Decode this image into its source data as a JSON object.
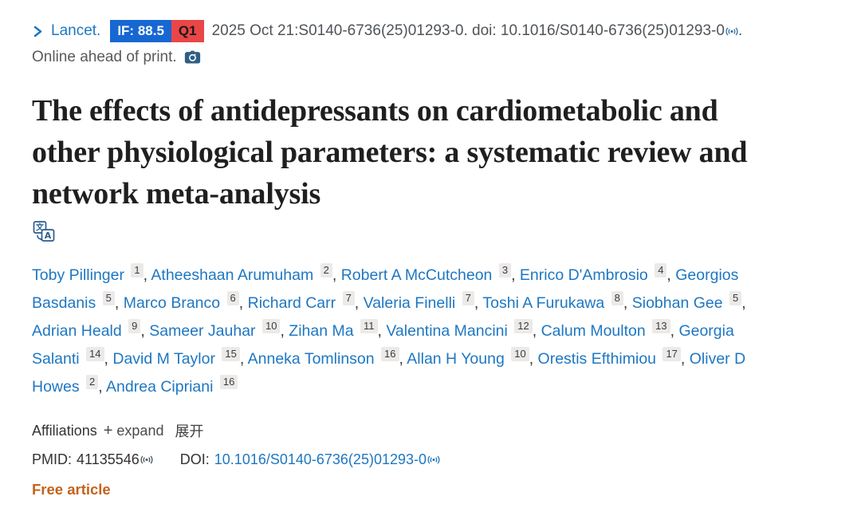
{
  "citation": {
    "journal": "Lancet.",
    "if_badge": "IF: 88.5",
    "quartile_badge": "Q1",
    "citation_text": "2025 Oct 21:S0140-6736(25)01293-0. doi: 10.1016/S0140-6736(25)01293-0",
    "trailing_period": ".",
    "online_ahead": "Online ahead of print.",
    "icons": {
      "chevron": "chevron-right-icon",
      "camera": "camera-icon",
      "signal": "full-text-signal-icon"
    }
  },
  "title": "The effects of antidepressants on cardiometabolic and other physiological parameters: a systematic review and network meta-analysis",
  "translate_icon": "translate-icon",
  "authors": {
    "separator": ", ",
    "list": [
      {
        "name": "Toby Pillinger",
        "sup": "1"
      },
      {
        "name": "Atheeshaan Arumuham",
        "sup": "2"
      },
      {
        "name": "Robert A McCutcheon",
        "sup": "3"
      },
      {
        "name": "Enrico D'Ambrosio",
        "sup": "4"
      },
      {
        "name": "Georgios Basdanis",
        "sup": "5"
      },
      {
        "name": "Marco Branco",
        "sup": "6"
      },
      {
        "name": "Richard Carr",
        "sup": "7"
      },
      {
        "name": "Valeria Finelli",
        "sup": "7"
      },
      {
        "name": "Toshi A Furukawa",
        "sup": "8"
      },
      {
        "name": "Siobhan Gee",
        "sup": "5"
      },
      {
        "name": "Adrian Heald",
        "sup": "9"
      },
      {
        "name": "Sameer Jauhar",
        "sup": "10"
      },
      {
        "name": "Zihan Ma",
        "sup": "11"
      },
      {
        "name": "Valentina Mancini",
        "sup": "12"
      },
      {
        "name": "Calum Moulton",
        "sup": "13"
      },
      {
        "name": "Georgia Salanti",
        "sup": "14"
      },
      {
        "name": "David M Taylor",
        "sup": "15"
      },
      {
        "name": "Anneka Tomlinson",
        "sup": "16"
      },
      {
        "name": "Allan H Young",
        "sup": "10"
      },
      {
        "name": "Orestis Efthimiou",
        "sup": "17"
      },
      {
        "name": "Oliver D Howes",
        "sup": "2"
      },
      {
        "name": "Andrea Cipriani",
        "sup": "16"
      }
    ]
  },
  "affiliations": {
    "label": "Affiliations",
    "plus": "+",
    "expand": "expand",
    "translated": "展开"
  },
  "identifiers": {
    "pmid_label": "PMID:",
    "pmid": "41135546",
    "doi_label": "DOI:",
    "doi": "10.1016/S0140-6736(25)01293-0"
  },
  "free_article": "Free article",
  "colors": {
    "link_blue": "#1e77c2",
    "if_badge_bg": "#1767d2",
    "q1_badge_bg": "#ea4647",
    "free_article_orange": "#c5621a",
    "citation_gray": "#5a5a5a",
    "title_black": "#1f1f1f"
  }
}
